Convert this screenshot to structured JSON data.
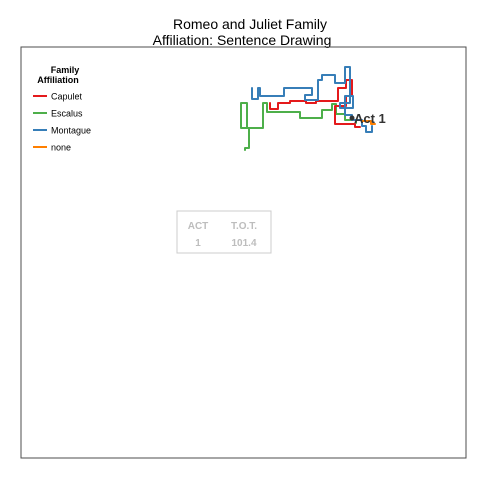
{
  "chart_data": {
    "type": "line",
    "title": [
      "Romeo and Juliet Family",
      "Affiliation: Sentence Drawing"
    ],
    "xlabel": "",
    "ylabel": "",
    "grid": false,
    "legend": {
      "title": [
        "Family",
        "Affiliation"
      ],
      "placement": "top-left",
      "entries": [
        {
          "name": "Capulet",
          "color": "#e41a1c"
        },
        {
          "name": "Escalus",
          "color": "#4daf4a"
        },
        {
          "name": "Montague",
          "color": "#377eb8"
        },
        {
          "name": "none",
          "color": "#ff7f00"
        }
      ]
    },
    "annotation": {
      "label": "Act 1",
      "color": "#333333"
    },
    "info_table": {
      "headers": [
        "ACT",
        "T.O.T."
      ],
      "values": [
        "1",
        "101.4"
      ],
      "color": "#bdbdbd"
    },
    "series": [
      {
        "name": "Escalus",
        "color": "#4daf4a",
        "points": [
          [
            245,
            150
          ],
          [
            245,
            148
          ],
          [
            249,
            148
          ],
          [
            249,
            128
          ],
          [
            241,
            128
          ],
          [
            241,
            103
          ],
          [
            247,
            103
          ],
          [
            247,
            128
          ],
          [
            263,
            128
          ],
          [
            263,
            103
          ],
          [
            267,
            103
          ],
          [
            267,
            112
          ],
          [
            300,
            112
          ],
          [
            300,
            118
          ],
          [
            322,
            118
          ],
          [
            322,
            110
          ],
          [
            332,
            110
          ],
          [
            332,
            104
          ],
          [
            336,
            104
          ],
          [
            336,
            114
          ],
          [
            345,
            114
          ],
          [
            345,
            120
          ],
          [
            356,
            120
          ],
          [
            356,
            123
          ]
        ]
      },
      {
        "name": "Capulet",
        "color": "#e41a1c",
        "points": [
          [
            270,
            103
          ],
          [
            270,
            109
          ],
          [
            278,
            109
          ],
          [
            278,
            103
          ],
          [
            290,
            103
          ],
          [
            290,
            101
          ],
          [
            306,
            101
          ],
          [
            306,
            103
          ],
          [
            316,
            103
          ],
          [
            316,
            101
          ],
          [
            338,
            101
          ],
          [
            338,
            88
          ],
          [
            346,
            88
          ],
          [
            346,
            80
          ],
          [
            352,
            80
          ],
          [
            352,
            96
          ],
          [
            346,
            96
          ],
          [
            346,
            106
          ],
          [
            335,
            106
          ],
          [
            335,
            124
          ],
          [
            355,
            124
          ],
          [
            355,
            127
          ],
          [
            360,
            127
          ]
        ]
      },
      {
        "name": "Montague",
        "color": "#377eb8",
        "points": [
          [
            252,
            88
          ],
          [
            252,
            99
          ],
          [
            258,
            99
          ],
          [
            258,
            88
          ],
          [
            260,
            88
          ],
          [
            260,
            96
          ],
          [
            284,
            96
          ],
          [
            284,
            88
          ],
          [
            312,
            88
          ],
          [
            312,
            95
          ],
          [
            305,
            95
          ],
          [
            305,
            100
          ],
          [
            318,
            100
          ],
          [
            318,
            80
          ],
          [
            322,
            80
          ],
          [
            322,
            75
          ],
          [
            335,
            75
          ],
          [
            335,
            83
          ],
          [
            345,
            83
          ],
          [
            345,
            67
          ],
          [
            350,
            67
          ],
          [
            350,
            103
          ],
          [
            340,
            103
          ],
          [
            340,
            108
          ],
          [
            353,
            108
          ],
          [
            353,
            96
          ],
          [
            345,
            96
          ],
          [
            345,
            115
          ],
          [
            352,
            115
          ],
          [
            352,
            120
          ],
          [
            362,
            120
          ],
          [
            362,
            126
          ],
          [
            366,
            126
          ],
          [
            366,
            132
          ],
          [
            372,
            132
          ],
          [
            372,
            126
          ]
        ]
      },
      {
        "name": "none",
        "color": "#ff7f00",
        "points": [
          [
            362,
            121
          ],
          [
            371,
            121
          ],
          [
            371,
            124
          ],
          [
            375,
            124
          ]
        ]
      }
    ],
    "endpoint": [
      352,
      118
    ],
    "ylim": [
      0,
      1
    ],
    "xlim": [
      0,
      1
    ]
  }
}
